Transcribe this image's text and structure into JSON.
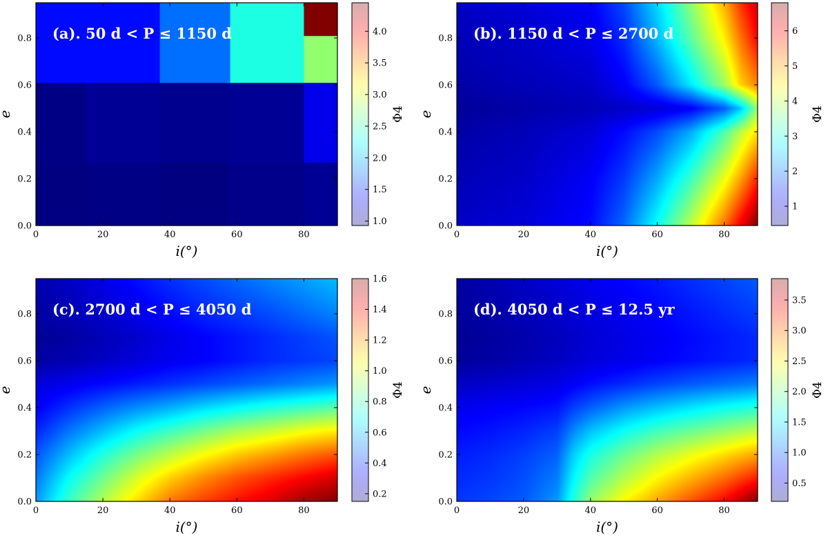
{
  "chart_data": [
    {
      "type": "heatmap",
      "label": "(a). 50 d < P ≤ 1150 d",
      "xlabel": "i(°)",
      "ylabel": "e",
      "xlim": [
        0,
        90
      ],
      "ylim": [
        0,
        0.95
      ],
      "x_ticks": [
        "0",
        "20",
        "40",
        "60",
        "80"
      ],
      "y_ticks": [
        "0.0",
        "0.2",
        "0.4",
        "0.6",
        "0.8"
      ],
      "colorbar_label": "Φ4",
      "colorbar_range": [
        0.93,
        4.45
      ],
      "colorbar_ticks": [
        "1.0",
        "1.5",
        "2.0",
        "2.5",
        "3.0",
        "3.5",
        "4.0"
      ],
      "cells": [
        {
          "x": [
            0,
            15
          ],
          "y": [
            0,
            0.27
          ],
          "value": 0.93
        },
        {
          "x": [
            15,
            37
          ],
          "y": [
            0,
            0.27
          ],
          "value": 0.95
        },
        {
          "x": [
            37,
            58
          ],
          "y": [
            0,
            0.27
          ],
          "value": 0.93
        },
        {
          "x": [
            58,
            80
          ],
          "y": [
            0,
            0.27
          ],
          "value": 0.97
        },
        {
          "x": [
            80,
            90
          ],
          "y": [
            0,
            0.27
          ],
          "value": 1.0
        },
        {
          "x": [
            0,
            15
          ],
          "y": [
            0.27,
            0.61
          ],
          "value": 0.95
        },
        {
          "x": [
            15,
            37
          ],
          "y": [
            0.27,
            0.61
          ],
          "value": 1.0
        },
        {
          "x": [
            37,
            58
          ],
          "y": [
            0.27,
            0.61
          ],
          "value": 0.98
        },
        {
          "x": [
            58,
            80
          ],
          "y": [
            0.27,
            0.61
          ],
          "value": 1.0
        },
        {
          "x": [
            80,
            90
          ],
          "y": [
            0.27,
            0.61
          ],
          "value": 1.3
        },
        {
          "x": [
            0,
            37
          ],
          "y": [
            0.61,
            0.95
          ],
          "value": 1.4
        },
        {
          "x": [
            37,
            58
          ],
          "y": [
            0.61,
            0.95
          ],
          "value": 1.75
        },
        {
          "x": [
            58,
            80
          ],
          "y": [
            0.61,
            0.95
          ],
          "value": 2.35
        },
        {
          "x": [
            80,
            90
          ],
          "y": [
            0.61,
            0.81
          ],
          "value": 2.75
        },
        {
          "x": [
            80,
            90
          ],
          "y": [
            0.81,
            0.95
          ],
          "value": 4.45
        }
      ]
    },
    {
      "type": "heatmap",
      "label": "(b). 1150 d < P ≤ 2700 d",
      "xlabel": "i(°)",
      "ylabel": "e",
      "xlim": [
        0,
        90
      ],
      "ylim": [
        0,
        0.95
      ],
      "x_ticks": [
        "0",
        "20",
        "40",
        "60",
        "80"
      ],
      "y_ticks": [
        "0.0",
        "0.2",
        "0.4",
        "0.6",
        "0.8"
      ],
      "colorbar_label": "Φ4",
      "colorbar_range": [
        0.45,
        6.8
      ],
      "colorbar_ticks": [
        "1",
        "2",
        "3",
        "4",
        "5",
        "6"
      ],
      "grid_x": [
        0,
        20,
        40,
        50,
        60,
        70,
        80,
        85,
        90
      ],
      "grid_y": [
        0,
        0.2,
        0.4,
        0.5,
        0.6,
        0.8,
        0.95
      ],
      "values": [
        [
          0.9,
          1.0,
          1.3,
          1.9,
          2.9,
          4.0,
          5.3,
          6.1,
          6.8
        ],
        [
          0.8,
          0.9,
          1.2,
          1.6,
          2.3,
          3.2,
          4.3,
          5.0,
          5.8
        ],
        [
          0.7,
          0.8,
          1.0,
          1.3,
          1.7,
          2.3,
          3.3,
          4.0,
          4.6
        ],
        [
          0.6,
          0.7,
          0.8,
          0.9,
          1.0,
          1.2,
          1.8,
          2.5,
          3.8
        ],
        [
          0.7,
          0.8,
          0.9,
          1.2,
          1.8,
          2.7,
          3.8,
          4.7,
          5.2
        ],
        [
          0.8,
          0.9,
          1.1,
          1.5,
          2.4,
          3.4,
          4.5,
          5.3,
          6.0
        ],
        [
          0.9,
          1.0,
          1.2,
          1.7,
          2.6,
          3.7,
          4.9,
          5.7,
          6.3
        ]
      ]
    },
    {
      "type": "heatmap",
      "label": "(c). 2700 d < P ≤ 4050 d",
      "xlabel": "i(°)",
      "ylabel": "e",
      "xlim": [
        0,
        90
      ],
      "ylim": [
        0,
        0.95
      ],
      "x_ticks": [
        "0",
        "20",
        "40",
        "60",
        "80"
      ],
      "y_ticks": [
        "0.0",
        "0.2",
        "0.4",
        "0.6",
        "0.8"
      ],
      "colorbar_label": "Φ4",
      "colorbar_range": [
        0.15,
        1.6
      ],
      "colorbar_ticks": [
        "0.2",
        "0.4",
        "0.6",
        "0.8",
        "1.0",
        "1.2",
        "1.4",
        "1.6"
      ],
      "grid_x": [
        0,
        10,
        20,
        30,
        40,
        50,
        60,
        70,
        80,
        90
      ],
      "grid_y": [
        0,
        0.1,
        0.2,
        0.3,
        0.4,
        0.5,
        0.6,
        0.7,
        0.8,
        0.95
      ],
      "values": [
        [
          0.55,
          0.78,
          0.95,
          1.1,
          1.25,
          1.33,
          1.4,
          1.47,
          1.55,
          1.6
        ],
        [
          0.5,
          0.7,
          0.85,
          1.0,
          1.12,
          1.22,
          1.3,
          1.36,
          1.42,
          1.48
        ],
        [
          0.45,
          0.6,
          0.74,
          0.86,
          0.96,
          1.05,
          1.13,
          1.19,
          1.25,
          1.3
        ],
        [
          0.38,
          0.5,
          0.6,
          0.7,
          0.78,
          0.86,
          0.93,
          0.98,
          1.04,
          1.08
        ],
        [
          0.32,
          0.4,
          0.47,
          0.53,
          0.58,
          0.64,
          0.69,
          0.74,
          0.78,
          0.82
        ],
        [
          0.28,
          0.31,
          0.34,
          0.37,
          0.4,
          0.43,
          0.46,
          0.49,
          0.52,
          0.55
        ],
        [
          0.2,
          0.22,
          0.25,
          0.28,
          0.31,
          0.33,
          0.36,
          0.39,
          0.41,
          0.43
        ],
        [
          0.18,
          0.2,
          0.23,
          0.26,
          0.3,
          0.33,
          0.36,
          0.39,
          0.42,
          0.45
        ],
        [
          0.2,
          0.22,
          0.26,
          0.3,
          0.34,
          0.38,
          0.41,
          0.44,
          0.48,
          0.52
        ],
        [
          0.22,
          0.25,
          0.3,
          0.35,
          0.4,
          0.44,
          0.48,
          0.52,
          0.56,
          0.6
        ]
      ]
    },
    {
      "type": "heatmap",
      "label": "(d). 4050 d < P ≤ 12.5 yr",
      "xlabel": "i(°)",
      "ylabel": "e",
      "xlim": [
        0,
        90
      ],
      "ylim": [
        0,
        0.95
      ],
      "x_ticks": [
        "0",
        "20",
        "40",
        "60",
        "80"
      ],
      "y_ticks": [
        "0.0",
        "0.2",
        "0.4",
        "0.6",
        "0.8"
      ],
      "colorbar_label": "Φ4",
      "colorbar_range": [
        0.2,
        3.85
      ],
      "colorbar_ticks": [
        "0.5",
        "1.0",
        "1.5",
        "2.0",
        "2.5",
        "3.0",
        "3.5"
      ],
      "grid_x": [
        0,
        10,
        20,
        30,
        35,
        40,
        50,
        60,
        70,
        80,
        90
      ],
      "grid_y": [
        0,
        0.1,
        0.2,
        0.3,
        0.4,
        0.5,
        0.6,
        0.7,
        0.8,
        0.95
      ],
      "values": [
        [
          0.85,
          0.9,
          0.98,
          1.2,
          1.7,
          2.1,
          2.5,
          2.8,
          3.1,
          3.4,
          3.85
        ],
        [
          0.8,
          0.85,
          0.93,
          1.1,
          1.55,
          1.85,
          2.2,
          2.5,
          2.75,
          3.0,
          3.3
        ],
        [
          0.75,
          0.8,
          0.88,
          1.0,
          1.4,
          1.65,
          1.95,
          2.2,
          2.4,
          2.6,
          2.8
        ],
        [
          0.68,
          0.72,
          0.78,
          0.88,
          1.15,
          1.35,
          1.6,
          1.8,
          1.95,
          2.1,
          2.25
        ],
        [
          0.6,
          0.63,
          0.67,
          0.72,
          0.88,
          1.0,
          1.2,
          1.35,
          1.48,
          1.6,
          1.7
        ],
        [
          0.45,
          0.48,
          0.52,
          0.56,
          0.63,
          0.7,
          0.8,
          0.9,
          0.98,
          1.05,
          1.12
        ],
        [
          0.3,
          0.33,
          0.38,
          0.44,
          0.48,
          0.52,
          0.58,
          0.64,
          0.7,
          0.75,
          0.8
        ],
        [
          0.28,
          0.31,
          0.36,
          0.42,
          0.46,
          0.5,
          0.56,
          0.62,
          0.68,
          0.74,
          0.8
        ],
        [
          0.3,
          0.34,
          0.4,
          0.46,
          0.5,
          0.54,
          0.6,
          0.66,
          0.73,
          0.8,
          0.88
        ],
        [
          0.33,
          0.38,
          0.45,
          0.52,
          0.56,
          0.6,
          0.67,
          0.74,
          0.82,
          0.9,
          0.98
        ]
      ]
    }
  ]
}
